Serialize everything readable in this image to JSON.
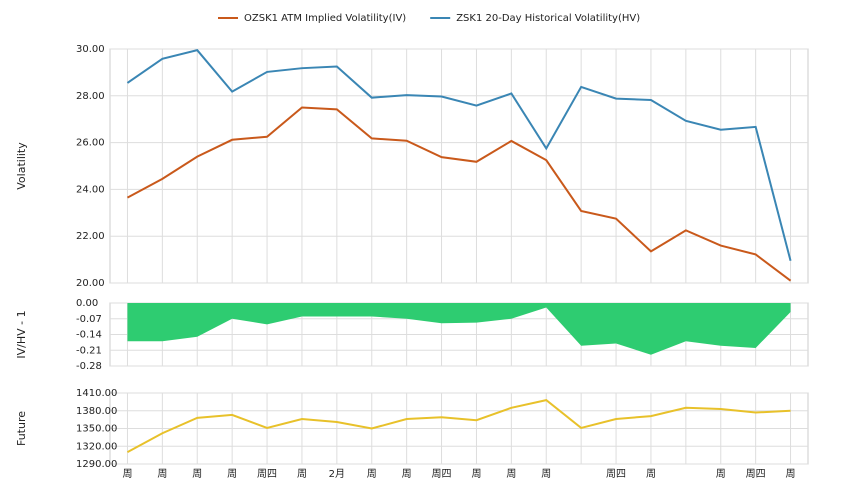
{
  "chart_data": [
    {
      "type": "line",
      "ylabel": "Volatility",
      "categories": [
        "周",
        "周",
        "周",
        "周",
        "周四",
        "周",
        "2月",
        "周",
        "周",
        "周四",
        "周",
        "周",
        "周",
        null,
        "周四",
        "周",
        null,
        "周",
        "周四",
        "周"
      ],
      "series": [
        {
          "name": "OZSK1 ATM Implied Volatility(IV)",
          "color": "#c9591b",
          "values": [
            23.65,
            24.45,
            25.4,
            26.12,
            26.25,
            27.5,
            27.42,
            26.18,
            26.08,
            25.38,
            25.18,
            26.07,
            25.25,
            23.08,
            22.75,
            21.35,
            22.25,
            21.6,
            21.22,
            20.1
          ]
        },
        {
          "name": "ZSK1 20-Day Historical Volatility(HV)",
          "color": "#3a86b4",
          "values": [
            28.55,
            29.58,
            29.95,
            28.18,
            29.02,
            29.18,
            29.25,
            27.92,
            28.03,
            27.97,
            27.58,
            28.1,
            25.75,
            28.38,
            27.88,
            27.82,
            26.93,
            26.55,
            26.67,
            20.95
          ]
        }
      ],
      "ylim": [
        20,
        30
      ],
      "yticks": [
        {
          "value": 20,
          "label": "20.00"
        },
        {
          "value": 22,
          "label": "22.00"
        },
        {
          "value": 24,
          "label": "24.00"
        },
        {
          "value": 26,
          "label": "26.00"
        },
        {
          "value": 28,
          "label": "28.00"
        },
        {
          "value": 30,
          "label": "30.00"
        }
      ],
      "grid": true,
      "legend": "top"
    },
    {
      "type": "area",
      "ylabel": "IV/HV - 1",
      "color": "#2ecc71",
      "values": [
        -0.17,
        -0.17,
        -0.15,
        -0.07,
        -0.095,
        -0.06,
        -0.06,
        -0.06,
        -0.07,
        -0.09,
        -0.087,
        -0.07,
        -0.02,
        -0.19,
        -0.18,
        -0.23,
        -0.17,
        -0.19,
        -0.2,
        -0.04
      ],
      "ylim": [
        -0.28,
        0
      ],
      "yticks": [
        {
          "value": -0.28,
          "label": "-0.28"
        },
        {
          "value": -0.21,
          "label": "-0.21"
        },
        {
          "value": -0.14,
          "label": "-0.14"
        },
        {
          "value": -0.07,
          "label": "-0.07"
        },
        {
          "value": 0,
          "label": "0.00"
        }
      ],
      "grid": true
    },
    {
      "type": "line",
      "ylabel": "Future",
      "color": "#e8c12a",
      "values": [
        1310,
        1342,
        1368,
        1373,
        1351,
        1366,
        1361,
        1350,
        1366,
        1369,
        1364,
        1385,
        1398,
        1351,
        1366,
        1371,
        1385,
        1383,
        1377,
        1380
      ],
      "ylim": [
        1290,
        1410
      ],
      "yticks": [
        {
          "value": 1290,
          "label": "1290.00"
        },
        {
          "value": 1320,
          "label": "1320.00"
        },
        {
          "value": 1350,
          "label": "1350.00"
        },
        {
          "value": 1380,
          "label": "1380.00"
        },
        {
          "value": 1410,
          "label": "1410.00"
        }
      ],
      "grid": true
    }
  ]
}
